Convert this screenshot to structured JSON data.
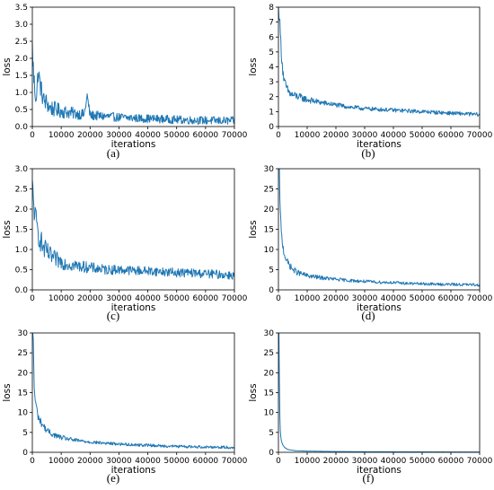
{
  "line_color": "#1f77b4",
  "chart_data": [
    {
      "type": "line",
      "panel_label": "(a)",
      "xlabel": "iterations",
      "ylabel": "loss",
      "xlim": [
        0,
        70000
      ],
      "ylim": [
        0,
        3.5
      ],
      "xticks": [
        0,
        10000,
        20000,
        30000,
        40000,
        50000,
        60000,
        70000
      ],
      "yticks": [
        "0.0",
        "0.5",
        "1.0",
        "1.5",
        "2.0",
        "2.5",
        "3.0",
        "3.5"
      ],
      "series": [
        {
          "x": [
            0,
            500,
            1000,
            1500,
            2000,
            3000,
            4000,
            5000,
            6000,
            8000,
            10000,
            12000,
            15000,
            18000,
            19000,
            20000,
            25000,
            30000,
            35000,
            40000,
            45000,
            50000,
            55000,
            60000,
            65000,
            70000
          ],
          "values": [
            2.3,
            1.4,
            1.0,
            0.9,
            1.6,
            1.1,
            0.75,
            0.7,
            0.55,
            0.5,
            0.45,
            0.42,
            0.38,
            0.35,
            0.9,
            0.33,
            0.3,
            0.27,
            0.25,
            0.23,
            0.22,
            0.2,
            0.19,
            0.18,
            0.17,
            0.17
          ],
          "noise": 0.12
        }
      ]
    },
    {
      "type": "line",
      "panel_label": "(b)",
      "xlabel": "iterations",
      "ylabel": "loss",
      "xlim": [
        0,
        70000
      ],
      "ylim": [
        0,
        8
      ],
      "xticks": [
        0,
        10000,
        20000,
        30000,
        40000,
        50000,
        60000,
        70000
      ],
      "yticks": [
        "0",
        "1",
        "2",
        "3",
        "4",
        "5",
        "6",
        "7",
        "8"
      ],
      "series": [
        {
          "x": [
            0,
            300,
            600,
            1000,
            1500,
            2000,
            3000,
            4000,
            5000,
            7000,
            10000,
            15000,
            20000,
            25000,
            30000,
            35000,
            40000,
            45000,
            50000,
            55000,
            60000,
            65000,
            70000
          ],
          "values": [
            8.0,
            7.5,
            6.5,
            5.0,
            3.8,
            3.0,
            2.5,
            2.2,
            2.1,
            2.0,
            1.8,
            1.6,
            1.45,
            1.3,
            1.2,
            1.15,
            1.1,
            1.05,
            1.0,
            0.95,
            0.9,
            0.85,
            0.8
          ],
          "noise": 0.13
        }
      ]
    },
    {
      "type": "line",
      "panel_label": "(c)",
      "xlabel": "iterations",
      "ylabel": "loss",
      "xlim": [
        0,
        70000
      ],
      "ylim": [
        0,
        3.0
      ],
      "xticks": [
        0,
        10000,
        20000,
        30000,
        40000,
        50000,
        60000,
        70000
      ],
      "yticks": [
        "0.0",
        "0.5",
        "1.0",
        "1.5",
        "2.0",
        "2.5",
        "3.0"
      ],
      "series": [
        {
          "x": [
            0,
            500,
            1000,
            2000,
            3000,
            4000,
            5000,
            6000,
            8000,
            10000,
            12000,
            15000,
            20000,
            25000,
            30000,
            35000,
            40000,
            45000,
            50000,
            55000,
            60000,
            65000,
            70000
          ],
          "values": [
            2.5,
            2.1,
            1.8,
            1.4,
            1.2,
            1.0,
            0.95,
            0.85,
            0.75,
            0.7,
            0.65,
            0.6,
            0.55,
            0.5,
            0.5,
            0.48,
            0.47,
            0.45,
            0.43,
            0.42,
            0.4,
            0.38,
            0.36
          ],
          "noise": 0.11
        }
      ]
    },
    {
      "type": "line",
      "panel_label": "(d)",
      "xlabel": "iterations",
      "ylabel": "loss",
      "xlim": [
        0,
        70000
      ],
      "ylim": [
        0,
        30
      ],
      "xticks": [
        0,
        10000,
        20000,
        30000,
        40000,
        50000,
        60000,
        70000
      ],
      "yticks": [
        "0",
        "5",
        "10",
        "15",
        "20",
        "25",
        "30"
      ],
      "series": [
        {
          "x": [
            0,
            300,
            600,
            1000,
            1500,
            2000,
            3000,
            4000,
            5000,
            7000,
            10000,
            15000,
            20000,
            25000,
            30000,
            35000,
            40000,
            45000,
            50000,
            55000,
            60000,
            65000,
            70000
          ],
          "values": [
            30,
            30,
            20,
            14,
            11,
            9,
            7,
            6,
            5,
            4.2,
            3.5,
            3.0,
            2.6,
            2.3,
            2.1,
            1.9,
            1.8,
            1.6,
            1.5,
            1.4,
            1.35,
            1.3,
            1.2
          ],
          "noise": 0.35
        }
      ]
    },
    {
      "type": "line",
      "panel_label": "(e)",
      "xlabel": "iterations",
      "ylabel": "loss",
      "xlim": [
        0,
        70000
      ],
      "ylim": [
        0,
        30
      ],
      "xticks": [
        0,
        10000,
        20000,
        30000,
        40000,
        50000,
        60000,
        70000
      ],
      "yticks": [
        "0",
        "5",
        "10",
        "15",
        "20",
        "25",
        "30"
      ],
      "series": [
        {
          "x": [
            0,
            300,
            600,
            1000,
            1500,
            2000,
            3000,
            4000,
            5000,
            7000,
            10000,
            15000,
            20000,
            25000,
            30000,
            35000,
            40000,
            45000,
            50000,
            55000,
            60000,
            65000,
            70000
          ],
          "values": [
            30,
            30,
            17,
            13,
            11,
            9,
            7.5,
            6.5,
            5.5,
            4.5,
            3.7,
            3.0,
            2.6,
            2.3,
            2.1,
            1.9,
            1.8,
            1.6,
            1.5,
            1.4,
            1.35,
            1.3,
            1.2
          ],
          "noise": 0.35
        }
      ]
    },
    {
      "type": "line",
      "panel_label": "(f)",
      "xlabel": "iterations",
      "ylabel": "loss",
      "xlim": [
        0,
        70000
      ],
      "ylim": [
        0,
        30
      ],
      "xticks": [
        0,
        10000,
        20000,
        30000,
        40000,
        50000,
        60000,
        70000
      ],
      "yticks": [
        "0",
        "5",
        "10",
        "15",
        "20",
        "25",
        "30"
      ],
      "series": [
        {
          "x": [
            0,
            200,
            400,
            600,
            800,
            1000,
            1300,
            1700,
            2200,
            3000,
            4000,
            6000,
            10000,
            20000,
            30000,
            40000,
            50000,
            60000,
            70000
          ],
          "values": [
            30,
            30,
            12,
            6,
            4,
            3,
            2.2,
            1.6,
            1.2,
            0.8,
            0.6,
            0.4,
            0.3,
            0.2,
            0.15,
            0.12,
            0.1,
            0.08,
            0.07
          ],
          "noise": 0.02
        }
      ]
    }
  ]
}
